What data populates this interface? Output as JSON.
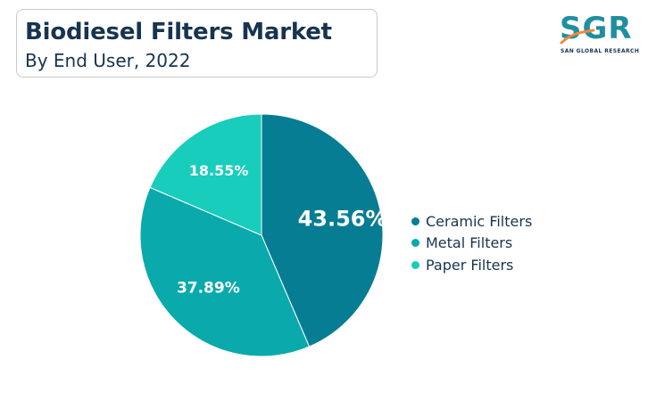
{
  "header": {
    "title": "Biodiesel Filters Market",
    "subtitle": "By End User, 2022"
  },
  "logo": {
    "name": "SGR",
    "tagline": "SAN GLOBAL RESEARCH",
    "colors": {
      "text": "#1f8fa0",
      "swoosh": "#f08a3c",
      "tagline": "#17344f"
    }
  },
  "chart_data": {
    "type": "pie",
    "categories": [
      "Ceramic Filters",
      "Metal Filters",
      "Paper Filters"
    ],
    "values": [
      43.56,
      37.89,
      18.55
    ],
    "data_labels": [
      "43.56%",
      "37.89%",
      "18.55%"
    ],
    "colors": [
      "#067d93",
      "#0aa9ab",
      "#18cdbc"
    ],
    "start_angle": "12 o'clock",
    "direction": "clockwise",
    "legend_position": "right"
  }
}
